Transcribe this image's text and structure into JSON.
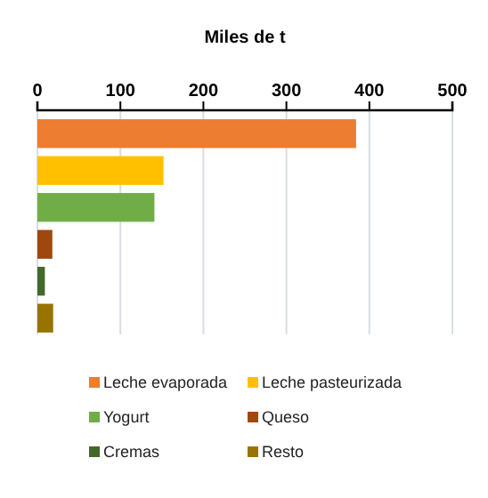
{
  "chart_data": {
    "type": "bar",
    "orientation": "horizontal",
    "title": "Miles de t",
    "categories": [
      null,
      null,
      null,
      null,
      null,
      null
    ],
    "series": [
      {
        "name": "Leche evaporada",
        "color": "#ed7d31",
        "values": [
          384,
          null,
          null,
          null,
          null,
          null
        ]
      },
      {
        "name": "Leche pasteurizada",
        "color": "#ffc000",
        "values": [
          null,
          152,
          null,
          null,
          null,
          null
        ]
      },
      {
        "name": "Yogurt",
        "color": "#70ad47",
        "values": [
          null,
          null,
          141,
          null,
          null,
          null
        ]
      },
      {
        "name": "Queso",
        "color": "#9e480e",
        "values": [
          null,
          null,
          null,
          18,
          null,
          null
        ]
      },
      {
        "name": "Cremas",
        "color": "#43682b",
        "values": [
          null,
          null,
          null,
          null,
          9,
          null
        ]
      },
      {
        "name": "Resto",
        "color": "#997300",
        "values": [
          null,
          null,
          null,
          null,
          null,
          19
        ]
      }
    ],
    "xlim": [
      0,
      500
    ],
    "xticks": [
      0,
      100,
      200,
      300,
      400,
      500
    ],
    "grid": "x",
    "legend": "bottom"
  }
}
